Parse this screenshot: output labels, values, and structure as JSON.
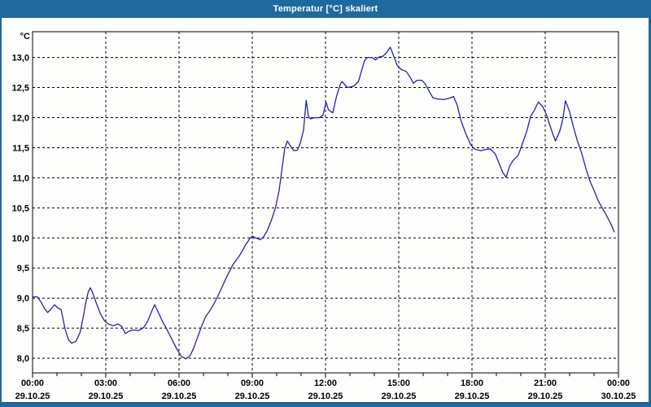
{
  "window": {
    "title": "Temperatur [°C] skaliert"
  },
  "colors": {
    "titlebar_bg": "#1e6a9e",
    "titlebar_text": "#ffffff",
    "frame": "#1e6a9e",
    "frame_dark_line": "#164a79",
    "content_bg": "#fdfefc",
    "grid": "#000000",
    "axis": "#000000",
    "text": "#000000",
    "line": "#2222aa"
  },
  "chart_data": {
    "type": "line",
    "title": "Temperatur [°C] skaliert",
    "unit_label": "°C",
    "grid": "dashed",
    "legend": "none",
    "ylim": [
      7.76,
      13.43
    ],
    "yticks": [
      {
        "value": 8.0,
        "label": "8,0"
      },
      {
        "value": 8.5,
        "label": "8,5"
      },
      {
        "value": 9.0,
        "label": "9,0"
      },
      {
        "value": 9.5,
        "label": "9,5"
      },
      {
        "value": 10.0,
        "label": "10,0"
      },
      {
        "value": 10.5,
        "label": "10,5"
      },
      {
        "value": 11.0,
        "label": "11,0"
      },
      {
        "value": 11.5,
        "label": "11,5"
      },
      {
        "value": 12.0,
        "label": "12,0"
      },
      {
        "value": 12.5,
        "label": "12,5"
      },
      {
        "value": 13.0,
        "label": "13,0"
      }
    ],
    "x_hours_range": [
      0,
      24
    ],
    "minor_tick_every_hours": 1,
    "xticks": [
      {
        "hour": 0,
        "time": "00:00",
        "date": "29.10.25"
      },
      {
        "hour": 3,
        "time": "03:00",
        "date": "29.10.25"
      },
      {
        "hour": 6,
        "time": "06:00",
        "date": "29.10.25"
      },
      {
        "hour": 9,
        "time": "09:00",
        "date": "29.10.25"
      },
      {
        "hour": 12,
        "time": "12:00",
        "date": "29.10.25"
      },
      {
        "hour": 15,
        "time": "15:00",
        "date": "29.10.25"
      },
      {
        "hour": 18,
        "time": "18:00",
        "date": "29.10.25"
      },
      {
        "hour": 21,
        "time": "21:00",
        "date": "29.10.25"
      },
      {
        "hour": 24,
        "time": "00:00",
        "date": "30.10.25"
      }
    ],
    "series": [
      {
        "name": "Temperatur",
        "color": "#2222aa",
        "points": [
          [
            0.0,
            9.02
          ],
          [
            0.2,
            9.02
          ],
          [
            0.35,
            8.93
          ],
          [
            0.5,
            8.82
          ],
          [
            0.62,
            8.76
          ],
          [
            0.78,
            8.83
          ],
          [
            0.9,
            8.89
          ],
          [
            1.05,
            8.83
          ],
          [
            1.17,
            8.81
          ],
          [
            1.33,
            8.49
          ],
          [
            1.47,
            8.31
          ],
          [
            1.6,
            8.25
          ],
          [
            1.77,
            8.28
          ],
          [
            1.94,
            8.42
          ],
          [
            2.06,
            8.65
          ],
          [
            2.17,
            8.9
          ],
          [
            2.28,
            9.1
          ],
          [
            2.37,
            9.17
          ],
          [
            2.45,
            9.1
          ],
          [
            2.6,
            8.93
          ],
          [
            2.78,
            8.74
          ],
          [
            2.95,
            8.62
          ],
          [
            3.1,
            8.57
          ],
          [
            3.3,
            8.54
          ],
          [
            3.5,
            8.57
          ],
          [
            3.65,
            8.53
          ],
          [
            3.8,
            8.41
          ],
          [
            3.95,
            8.45
          ],
          [
            4.1,
            8.47
          ],
          [
            4.35,
            8.46
          ],
          [
            4.55,
            8.51
          ],
          [
            4.72,
            8.62
          ],
          [
            4.88,
            8.78
          ],
          [
            5.0,
            8.89
          ],
          [
            5.12,
            8.79
          ],
          [
            5.3,
            8.63
          ],
          [
            5.45,
            8.52
          ],
          [
            5.65,
            8.36
          ],
          [
            5.9,
            8.16
          ],
          [
            6.1,
            8.03
          ],
          [
            6.28,
            7.99
          ],
          [
            6.45,
            8.04
          ],
          [
            6.6,
            8.17
          ],
          [
            6.78,
            8.37
          ],
          [
            6.95,
            8.56
          ],
          [
            7.1,
            8.7
          ],
          [
            7.28,
            8.8
          ],
          [
            7.45,
            8.92
          ],
          [
            7.6,
            9.04
          ],
          [
            7.95,
            9.35
          ],
          [
            8.2,
            9.55
          ],
          [
            8.5,
            9.72
          ],
          [
            8.72,
            9.88
          ],
          [
            8.9,
            9.99
          ],
          [
            9.0,
            10.03
          ],
          [
            9.15,
            10.0
          ],
          [
            9.33,
            9.97
          ],
          [
            9.45,
            10.01
          ],
          [
            9.6,
            10.11
          ],
          [
            9.78,
            10.29
          ],
          [
            9.95,
            10.5
          ],
          [
            10.1,
            10.79
          ],
          [
            10.22,
            11.15
          ],
          [
            10.33,
            11.49
          ],
          [
            10.44,
            11.61
          ],
          [
            10.56,
            11.53
          ],
          [
            10.7,
            11.45
          ],
          [
            10.85,
            11.46
          ],
          [
            10.97,
            11.58
          ],
          [
            11.1,
            11.79
          ],
          [
            11.21,
            12.29
          ],
          [
            11.3,
            12.02
          ],
          [
            11.38,
            11.98
          ],
          [
            11.55,
            12.0
          ],
          [
            11.75,
            12.0
          ],
          [
            11.9,
            12.04
          ],
          [
            12.02,
            12.26
          ],
          [
            12.12,
            12.13
          ],
          [
            12.3,
            12.08
          ],
          [
            12.45,
            12.35
          ],
          [
            12.6,
            12.55
          ],
          [
            12.68,
            12.6
          ],
          [
            12.9,
            12.5
          ],
          [
            13.15,
            12.52
          ],
          [
            13.35,
            12.6
          ],
          [
            13.6,
            12.95
          ],
          [
            13.72,
            13.0
          ],
          [
            13.9,
            13.0
          ],
          [
            14.05,
            12.96
          ],
          [
            14.2,
            13.01
          ],
          [
            14.35,
            13.02
          ],
          [
            14.5,
            13.08
          ],
          [
            14.65,
            13.17
          ],
          [
            14.77,
            13.05
          ],
          [
            14.93,
            12.87
          ],
          [
            15.1,
            12.8
          ],
          [
            15.3,
            12.77
          ],
          [
            15.5,
            12.65
          ],
          [
            15.6,
            12.57
          ],
          [
            15.75,
            12.62
          ],
          [
            15.95,
            12.62
          ],
          [
            16.1,
            12.55
          ],
          [
            16.27,
            12.42
          ],
          [
            16.4,
            12.33
          ],
          [
            16.6,
            12.31
          ],
          [
            16.85,
            12.3
          ],
          [
            17.05,
            12.32
          ],
          [
            17.25,
            12.35
          ],
          [
            17.4,
            12.2
          ],
          [
            17.55,
            11.95
          ],
          [
            17.75,
            11.73
          ],
          [
            17.95,
            11.55
          ],
          [
            18.1,
            11.48
          ],
          [
            18.35,
            11.45
          ],
          [
            18.55,
            11.47
          ],
          [
            18.75,
            11.48
          ],
          [
            18.95,
            11.4
          ],
          [
            19.1,
            11.25
          ],
          [
            19.27,
            11.08
          ],
          [
            19.4,
            11.01
          ],
          [
            19.55,
            11.2
          ],
          [
            19.67,
            11.28
          ],
          [
            19.9,
            11.38
          ],
          [
            20.05,
            11.55
          ],
          [
            20.25,
            11.78
          ],
          [
            20.4,
            12.02
          ],
          [
            20.55,
            12.12
          ],
          [
            20.72,
            12.26
          ],
          [
            20.9,
            12.18
          ],
          [
            21.05,
            12.05
          ],
          [
            21.25,
            11.8
          ],
          [
            21.42,
            11.61
          ],
          [
            21.6,
            11.78
          ],
          [
            21.72,
            11.97
          ],
          [
            21.83,
            12.28
          ],
          [
            22.0,
            12.1
          ],
          [
            22.15,
            11.85
          ],
          [
            22.33,
            11.6
          ],
          [
            22.5,
            11.4
          ],
          [
            22.67,
            11.15
          ],
          [
            22.83,
            10.95
          ],
          [
            23.0,
            10.79
          ],
          [
            23.17,
            10.62
          ],
          [
            23.33,
            10.5
          ],
          [
            23.5,
            10.38
          ],
          [
            23.67,
            10.25
          ],
          [
            23.83,
            10.1
          ]
        ]
      }
    ]
  }
}
